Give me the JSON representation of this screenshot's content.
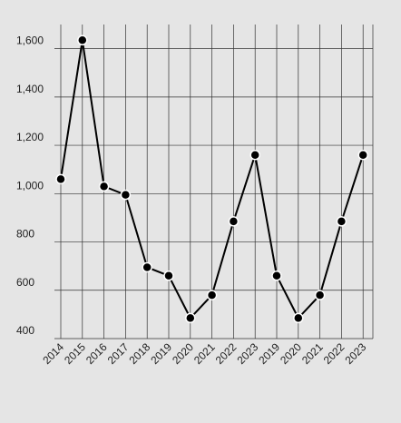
{
  "chart_data": {
    "type": "line",
    "categories": [
      "2014",
      "2015",
      "2016",
      "2017",
      "2018",
      "2019",
      "2020",
      "2021",
      "2022",
      "2023",
      "2019",
      "2020",
      "2021",
      "2022",
      "2023"
    ],
    "values": [
      1060,
      1635,
      1030,
      995,
      695,
      660,
      485,
      580,
      885,
      1160,
      660,
      485,
      580,
      885,
      1160
    ],
    "color": "#000000",
    "ylim": [
      400,
      1700
    ],
    "yticks": [
      400,
      {
        "value": 600,
        "label": "600"
      },
      {
        "value": 800,
        "label": "800"
      },
      {
        "value": 1000,
        "label": "1,000"
      },
      {
        "value": 1200,
        "label": "1,200"
      },
      {
        "value": 1400,
        "label": "1,400"
      },
      {
        "value": 1600,
        "label": "1,600"
      }
    ],
    "grid": true
  }
}
